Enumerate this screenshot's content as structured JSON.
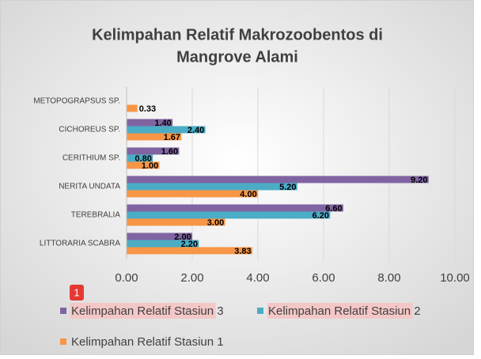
{
  "chart_data": {
    "type": "hbar",
    "title": [
      "Kelimpahan Relatif Makrozoobentos di",
      "Mangrove Alami"
    ],
    "categories": [
      "METOPOGRAPSUS SP.",
      "CICHOREUS SP.",
      "CERITHIUM SP.",
      "NERITA UNDATA",
      "TEREBRALIA",
      "LITTORARIA SCABRA"
    ],
    "series": [
      {
        "name": "Kelimpahan Relatif Stasiun 3",
        "color": "#8064a2",
        "values": [
          null,
          1.4,
          1.6,
          9.2,
          6.6,
          2.0
        ],
        "value_labels": [
          null,
          "1.40",
          "1.60",
          "9.20",
          "6.60",
          "2.00"
        ]
      },
      {
        "name": "Kelimpahan Relatif Stasiun 2",
        "color": "#4bacc6",
        "values": [
          null,
          2.4,
          0.8,
          5.2,
          6.2,
          2.2
        ],
        "value_labels": [
          null,
          "2.40",
          "0.80",
          "5.20",
          "6.20",
          "2.20"
        ]
      },
      {
        "name": "Kelimpahan Relatif Stasiun 1",
        "color": "#f79646",
        "values": [
          0.33,
          1.67,
          1.0,
          4.0,
          3.0,
          3.83
        ],
        "value_labels": [
          "0.33",
          "1.67",
          "1.00",
          "4.00",
          "3.00",
          "3.83"
        ]
      }
    ],
    "xlim": [
      0,
      10
    ],
    "xticks": [
      {
        "value": 0,
        "label": "0.00"
      },
      {
        "value": 2,
        "label": "2.00"
      },
      {
        "value": 4,
        "label": "4.00"
      },
      {
        "value": 6,
        "label": "6.00"
      },
      {
        "value": 8,
        "label": "8.00"
      },
      {
        "value": 10,
        "label": "10.00"
      }
    ],
    "grid": true,
    "legend": "bottom",
    "annotation": "1"
  }
}
